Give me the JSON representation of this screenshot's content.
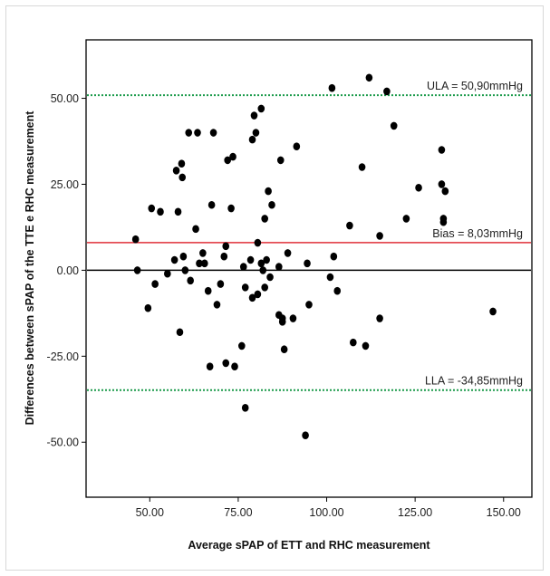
{
  "chart_data": {
    "type": "scatter",
    "title": "",
    "xlabel": "Average sPAP of ETT and RHC measurement",
    "ylabel": "Differences between sPAP of the TTE e RHC measurement",
    "xlim": [
      32,
      158
    ],
    "ylim": [
      -66,
      67
    ],
    "x_ticks": [
      50,
      75,
      100,
      125,
      150
    ],
    "x_tick_labels": [
      "50.00",
      "75.00",
      "100.00",
      "125.00",
      "150.00"
    ],
    "y_ticks": [
      50,
      25,
      0,
      -25,
      -50
    ],
    "y_tick_labels": [
      "50.00",
      "25.00",
      "0.00",
      "-25.00",
      "-50.00"
    ],
    "grid": false,
    "reference_lines": [
      {
        "name": "zero",
        "y": 0,
        "color": "#000000",
        "style": "solid",
        "label": ""
      },
      {
        "name": "ula",
        "y": 50.9,
        "color": "#1a9a4a",
        "style": "dotted",
        "label": "ULA = 50,90mmHg"
      },
      {
        "name": "bias",
        "y": 8.03,
        "color": "#e0303a",
        "style": "solid",
        "label": "Bias = 8,03mmHg"
      },
      {
        "name": "lla",
        "y": -34.85,
        "color": "#1a9a4a",
        "style": "dotted",
        "label": "LLA = -34,85mmHg"
      }
    ],
    "point_color": "#000000",
    "points": [
      [
        46,
        9
      ],
      [
        46.5,
        0
      ],
      [
        49.5,
        -11
      ],
      [
        50.5,
        18
      ],
      [
        51.5,
        -4
      ],
      [
        53,
        17
      ],
      [
        55,
        -1
      ],
      [
        57,
        3
      ],
      [
        57.5,
        29
      ],
      [
        58,
        17
      ],
      [
        58.5,
        -18
      ],
      [
        59,
        31
      ],
      [
        59.2,
        27
      ],
      [
        59.5,
        4
      ],
      [
        60,
        0
      ],
      [
        61,
        40
      ],
      [
        61.5,
        -3
      ],
      [
        63,
        12
      ],
      [
        63.5,
        40
      ],
      [
        64,
        2
      ],
      [
        65,
        5
      ],
      [
        65.5,
        2
      ],
      [
        66.5,
        -6
      ],
      [
        67,
        -28
      ],
      [
        67.5,
        19
      ],
      [
        68,
        40
      ],
      [
        69,
        -10
      ],
      [
        70,
        -4
      ],
      [
        71,
        4
      ],
      [
        71.5,
        7
      ],
      [
        71.5,
        -27
      ],
      [
        72,
        32
      ],
      [
        73,
        18
      ],
      [
        73.5,
        33
      ],
      [
        74,
        -28
      ],
      [
        76,
        -22
      ],
      [
        76.5,
        1
      ],
      [
        77,
        -5
      ],
      [
        77,
        -40
      ],
      [
        78.5,
        3
      ],
      [
        79,
        38
      ],
      [
        79,
        -8
      ],
      [
        79.5,
        45
      ],
      [
        80,
        40
      ],
      [
        80.5,
        8
      ],
      [
        80.5,
        -7
      ],
      [
        81.5,
        47
      ],
      [
        81.5,
        2
      ],
      [
        82,
        0
      ],
      [
        82.5,
        15
      ],
      [
        82.5,
        -5
      ],
      [
        83,
        3
      ],
      [
        83.5,
        23
      ],
      [
        84,
        -2
      ],
      [
        84.5,
        19
      ],
      [
        86.5,
        1
      ],
      [
        86.5,
        -13
      ],
      [
        87,
        32
      ],
      [
        87.5,
        -14
      ],
      [
        87.5,
        -15
      ],
      [
        88,
        -23
      ],
      [
        89,
        5
      ],
      [
        90.5,
        -14
      ],
      [
        91.5,
        36
      ],
      [
        94,
        -48
      ],
      [
        94.5,
        2
      ],
      [
        95,
        -10
      ],
      [
        101,
        -2
      ],
      [
        101.5,
        53
      ],
      [
        102,
        4
      ],
      [
        103,
        -6
      ],
      [
        106.5,
        13
      ],
      [
        107.5,
        -21
      ],
      [
        110,
        30
      ],
      [
        111,
        -22
      ],
      [
        112,
        56
      ],
      [
        115,
        10
      ],
      [
        115,
        -14
      ],
      [
        117,
        52
      ],
      [
        119,
        42
      ],
      [
        122.5,
        15
      ],
      [
        126,
        24
      ],
      [
        132.5,
        35
      ],
      [
        132.5,
        25
      ],
      [
        133,
        15
      ],
      [
        133,
        14
      ],
      [
        133.5,
        23
      ],
      [
        147,
        -12
      ]
    ]
  }
}
